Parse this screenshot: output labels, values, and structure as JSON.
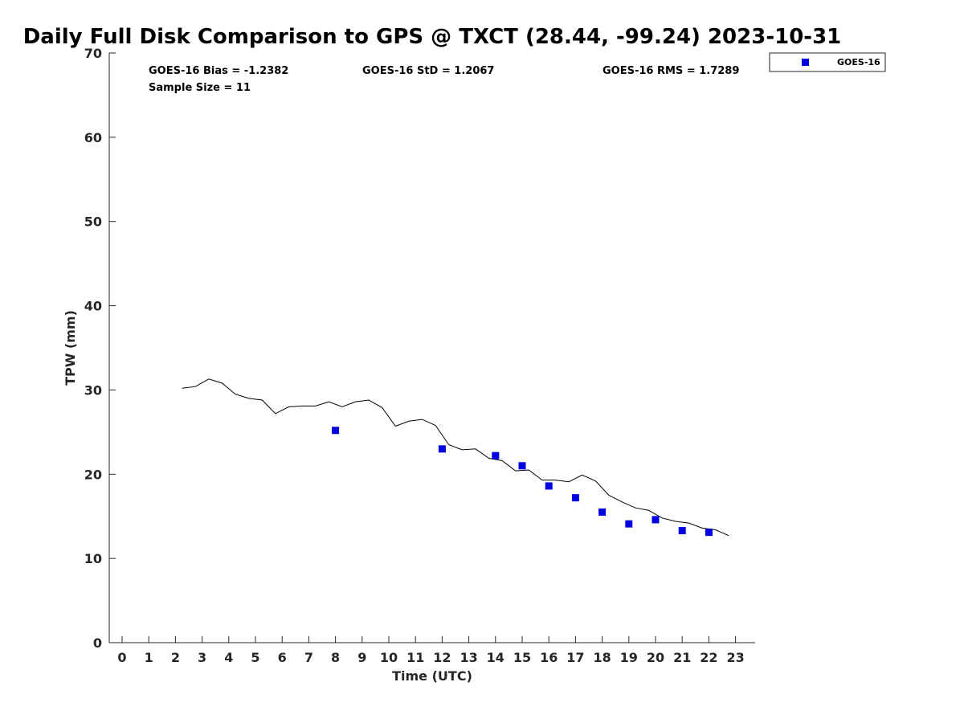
{
  "chart_data": {
    "type": "scatter",
    "title": "Daily Full Disk Comparison to GPS @ TXCT (28.44, -99.24) 2023-10-31",
    "xlabel": "Time (UTC)",
    "ylabel": "TPW (mm)",
    "xlim": [
      -0.5,
      23.75
    ],
    "ylim": [
      0,
      70
    ],
    "x_ticks": [
      0,
      1,
      2,
      3,
      4,
      5,
      6,
      7,
      8,
      9,
      10,
      11,
      12,
      13,
      14,
      15,
      16,
      17,
      18,
      19,
      20,
      21,
      22,
      23
    ],
    "y_ticks": [
      0,
      10,
      20,
      30,
      40,
      50,
      60,
      70
    ],
    "grid": false,
    "legend_position": "top-right, outside plot",
    "stats": {
      "bias": "GOES-16 Bias = -1.2382",
      "std": "GOES-16 StD = 1.2067",
      "rms": "GOES-16 RMS = 1.7289",
      "sample": "Sample Size = 11"
    },
    "series": [
      {
        "name": "GOES-16",
        "kind": "scatter",
        "marker": "square",
        "color": "#0000e0",
        "x": [
          8,
          12,
          14,
          15,
          16,
          17,
          18,
          19,
          20,
          21,
          22
        ],
        "y": [
          25.2,
          23.0,
          22.2,
          21.0,
          18.6,
          17.2,
          15.5,
          14.1,
          14.6,
          13.3,
          13.1
        ]
      },
      {
        "kind": "line",
        "color": "#000000",
        "x": [
          2.25,
          2.75,
          3.25,
          3.75,
          4.25,
          4.75,
          5.25,
          5.75,
          6.25,
          6.75,
          7.25,
          7.75,
          8.25,
          8.75,
          9.25,
          9.75,
          10.25,
          10.75,
          11.25,
          11.75,
          12.25,
          12.75,
          13.25,
          13.75,
          14.25,
          14.75,
          15.25,
          15.75,
          16.25,
          16.75,
          17.25,
          17.75,
          18.25,
          18.75,
          19.25,
          19.75,
          20.25,
          20.75,
          21.25,
          21.75,
          22.25,
          22.75
        ],
        "y": [
          30.2,
          30.4,
          31.3,
          30.8,
          29.5,
          29.0,
          28.8,
          27.2,
          28.0,
          28.1,
          28.1,
          28.6,
          28.0,
          28.6,
          28.8,
          27.9,
          25.7,
          26.3,
          26.5,
          25.8,
          23.5,
          22.9,
          23.0,
          21.9,
          21.6,
          20.4,
          20.5,
          19.3,
          19.3,
          19.1,
          19.9,
          19.2,
          17.5,
          16.7,
          16.0,
          15.7,
          14.8,
          14.4,
          14.2,
          13.6,
          13.4,
          12.7
        ]
      }
    ]
  }
}
